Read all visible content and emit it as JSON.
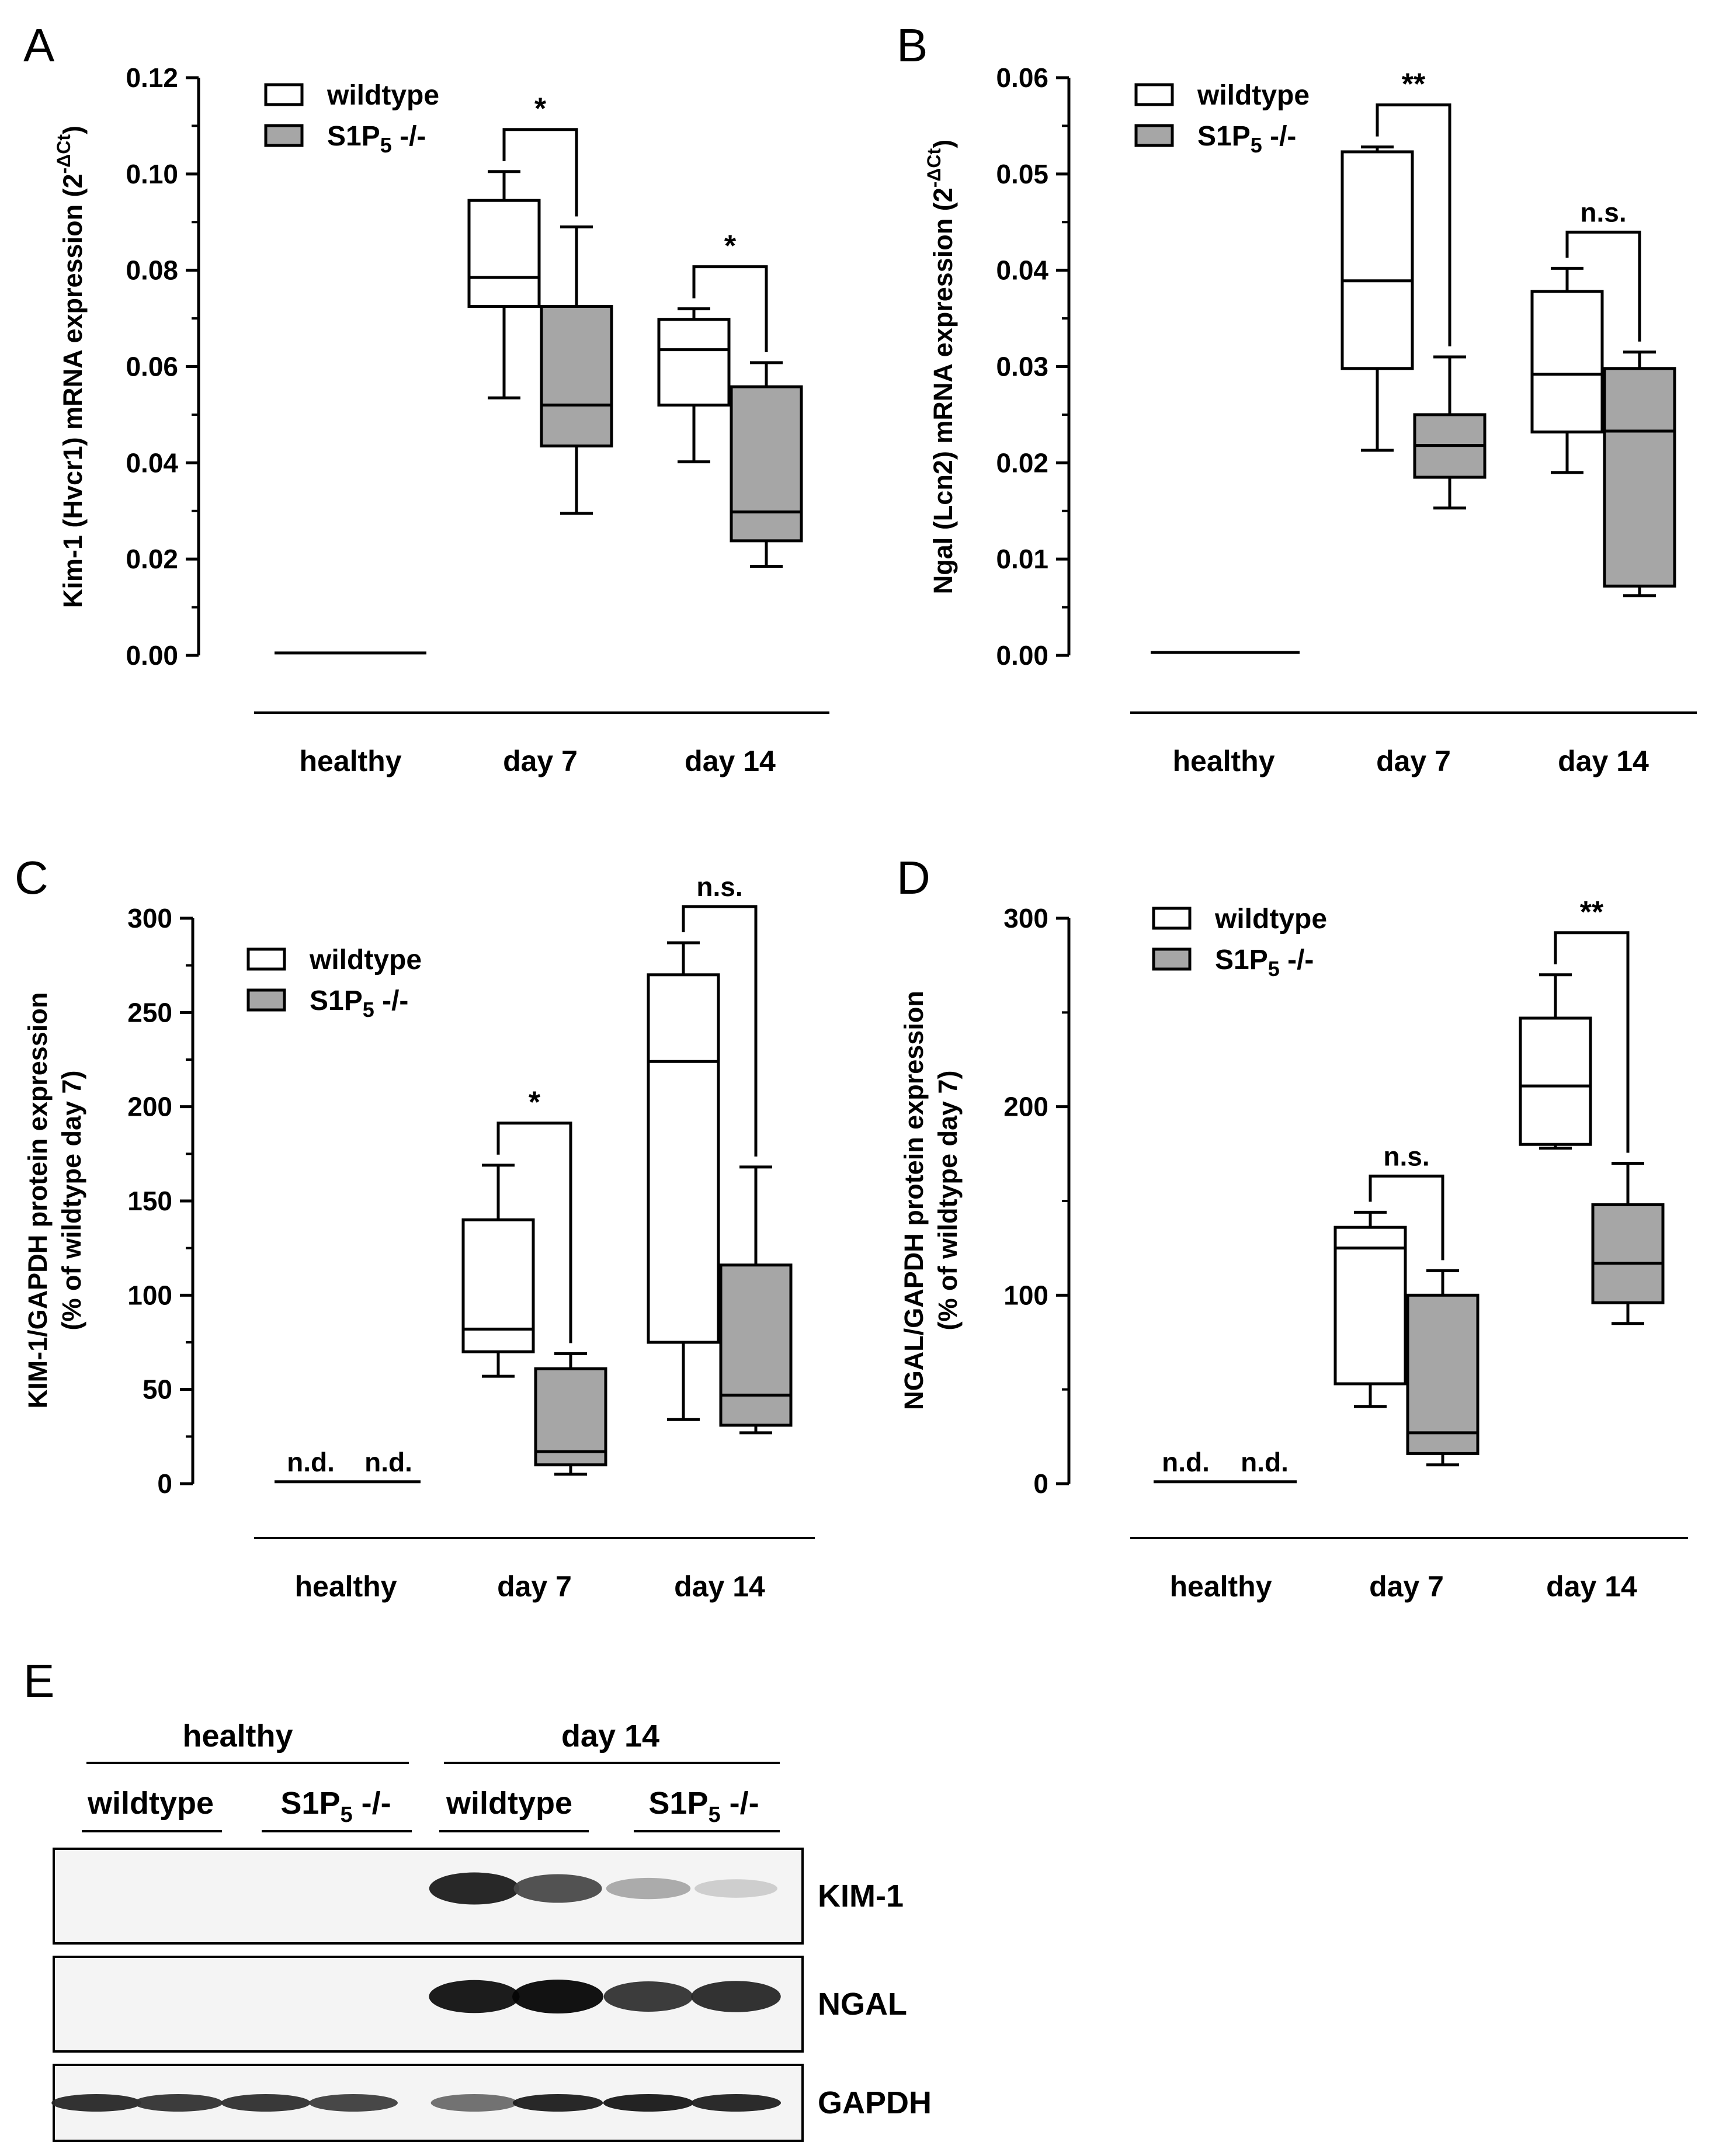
{
  "panel_labels": [
    "A",
    "B",
    "C",
    "D",
    "E"
  ],
  "legend": {
    "wildtype": "wildtype",
    "ko_prefix": "S1P",
    "ko_sub": "5",
    "ko_suffix": " -/-"
  },
  "colors": {
    "wildtype_fill": "#ffffff",
    "ko_fill": "#a6a6a6",
    "line": "#000000"
  },
  "chart_data": [
    {
      "id": "A",
      "type": "box",
      "ylabel": "Kim-1 (Hvcr1) mRNA expression (2",
      "ylabel_sup": "-ΔCt",
      "ylabel_end": ")",
      "ylim": [
        0,
        0.12
      ],
      "yticks": [
        "0.00",
        "0.02",
        "0.04",
        "0.06",
        "0.08",
        "0.10",
        "0.12"
      ],
      "categories": [
        "healthy",
        "day 7",
        "day 14"
      ],
      "healthy_line": 0.0005,
      "boxes": [
        {
          "group": "day 7",
          "series": "wildtype",
          "min": 0.0535,
          "q1": 0.0725,
          "median": 0.0785,
          "q3": 0.0945,
          "max": 0.1005
        },
        {
          "group": "day 7",
          "series": "S1P5 -/-",
          "min": 0.0295,
          "q1": 0.0435,
          "median": 0.052,
          "q3": 0.0725,
          "max": 0.089
        },
        {
          "group": "day 14",
          "series": "wildtype",
          "min": 0.0402,
          "q1": 0.052,
          "median": 0.0635,
          "q3": 0.0698,
          "max": 0.072
        },
        {
          "group": "day 14",
          "series": "S1P5 -/-",
          "min": 0.0185,
          "q1": 0.0238,
          "median": 0.0298,
          "q3": 0.0558,
          "max": 0.0608
        }
      ],
      "significance": [
        {
          "group": "day 7",
          "label": "*"
        },
        {
          "group": "day 14",
          "label": "*"
        }
      ]
    },
    {
      "id": "B",
      "type": "box",
      "ylabel": "Ngal (Lcn2) mRNA expression (2",
      "ylabel_sup": "-ΔCt",
      "ylabel_end": ")",
      "ylim": [
        0,
        0.06
      ],
      "yticks": [
        "0.00",
        "0.01",
        "0.02",
        "0.03",
        "0.04",
        "0.05",
        "0.06"
      ],
      "categories": [
        "healthy",
        "day 7",
        "day 14"
      ],
      "healthy_line": 0.0003,
      "boxes": [
        {
          "group": "day 7",
          "series": "wildtype",
          "min": 0.0213,
          "q1": 0.0298,
          "median": 0.0389,
          "q3": 0.0523,
          "max": 0.0528
        },
        {
          "group": "day 7",
          "series": "S1P5 -/-",
          "min": 0.0153,
          "q1": 0.0185,
          "median": 0.0218,
          "q3": 0.025,
          "max": 0.031
        },
        {
          "group": "day 14",
          "series": "wildtype",
          "min": 0.019,
          "q1": 0.0232,
          "median": 0.0292,
          "q3": 0.0378,
          "max": 0.0402
        },
        {
          "group": "day 14",
          "series": "S1P5 -/-",
          "min": 0.0062,
          "q1": 0.0072,
          "median": 0.0233,
          "q3": 0.0298,
          "max": 0.0315
        }
      ],
      "significance": [
        {
          "group": "day 7",
          "label": "**"
        },
        {
          "group": "day 14",
          "label": "n.s."
        }
      ]
    },
    {
      "id": "C",
      "type": "box",
      "ylabel": "KIM-1/GAPDH protein expression",
      "ylabel2": "(% of wildtype day 7)",
      "ylim": [
        0,
        300
      ],
      "yticks": [
        "0",
        "50",
        "100",
        "150",
        "200",
        "250",
        "300"
      ],
      "categories": [
        "healthy",
        "day 7",
        "day 14"
      ],
      "healthy_line": 1,
      "nd_labels": [
        "n.d.",
        "n.d."
      ],
      "boxes": [
        {
          "group": "day 7",
          "series": "wildtype",
          "min": 57,
          "q1": 70,
          "median": 82,
          "q3": 140,
          "max": 169
        },
        {
          "group": "day 7",
          "series": "S1P5 -/-",
          "min": 5,
          "q1": 10,
          "median": 17,
          "q3": 61,
          "max": 69
        },
        {
          "group": "day 14",
          "series": "wildtype",
          "min": 34,
          "q1": 75,
          "median": 224,
          "q3": 270,
          "max": 287
        },
        {
          "group": "day 14",
          "series": "S1P5 -/-",
          "min": 27,
          "q1": 31,
          "median": 47,
          "q3": 116,
          "max": 168
        }
      ],
      "significance": [
        {
          "group": "day 7",
          "label": "*"
        },
        {
          "group": "day 14",
          "label": "n.s."
        }
      ]
    },
    {
      "id": "D",
      "type": "box",
      "ylabel": "NGAL/GAPDH protein expression",
      "ylabel2": "(% of wildtype day 7)",
      "ylim": [
        0,
        300
      ],
      "yticks": [
        "0",
        "100",
        "200",
        "300"
      ],
      "categories": [
        "healthy",
        "day 7",
        "day 14"
      ],
      "healthy_line": 1,
      "nd_labels": [
        "n.d.",
        "n.d."
      ],
      "boxes": [
        {
          "group": "day 7",
          "series": "wildtype",
          "min": 41,
          "q1": 53,
          "median": 125,
          "q3": 136,
          "max": 144
        },
        {
          "group": "day 7",
          "series": "S1P5 -/-",
          "min": 10,
          "q1": 16,
          "median": 27,
          "q3": 100,
          "max": 113
        },
        {
          "group": "day 14",
          "series": "wildtype",
          "min": 178,
          "q1": 180,
          "median": 211,
          "q3": 247,
          "max": 270
        },
        {
          "group": "day 14",
          "series": "S1P5 -/-",
          "min": 85,
          "q1": 96,
          "median": 117,
          "q3": 148,
          "max": 170
        }
      ],
      "significance": [
        {
          "group": "day 7",
          "label": "n.s."
        },
        {
          "group": "day 14",
          "label": "**"
        }
      ]
    }
  ],
  "blot": {
    "headers": [
      "healthy",
      "day 14"
    ],
    "subheaders": [
      "wildtype",
      "S1P",
      "wildtype",
      "S1P"
    ],
    "sub_5": "5",
    "sub_suffix": " -/-",
    "rows": [
      {
        "label": "KIM-1",
        "intensity": [
          0.02,
          0.02,
          0.02,
          0.02,
          0.9,
          0.7,
          0.28,
          0.12
        ]
      },
      {
        "label": "NGAL",
        "intensity": [
          0.0,
          0.0,
          0.0,
          0.0,
          0.95,
          1.0,
          0.8,
          0.85
        ]
      },
      {
        "label": "GAPDH",
        "intensity": [
          0.85,
          0.8,
          0.82,
          0.75,
          0.55,
          0.9,
          0.92,
          0.88
        ]
      }
    ]
  }
}
